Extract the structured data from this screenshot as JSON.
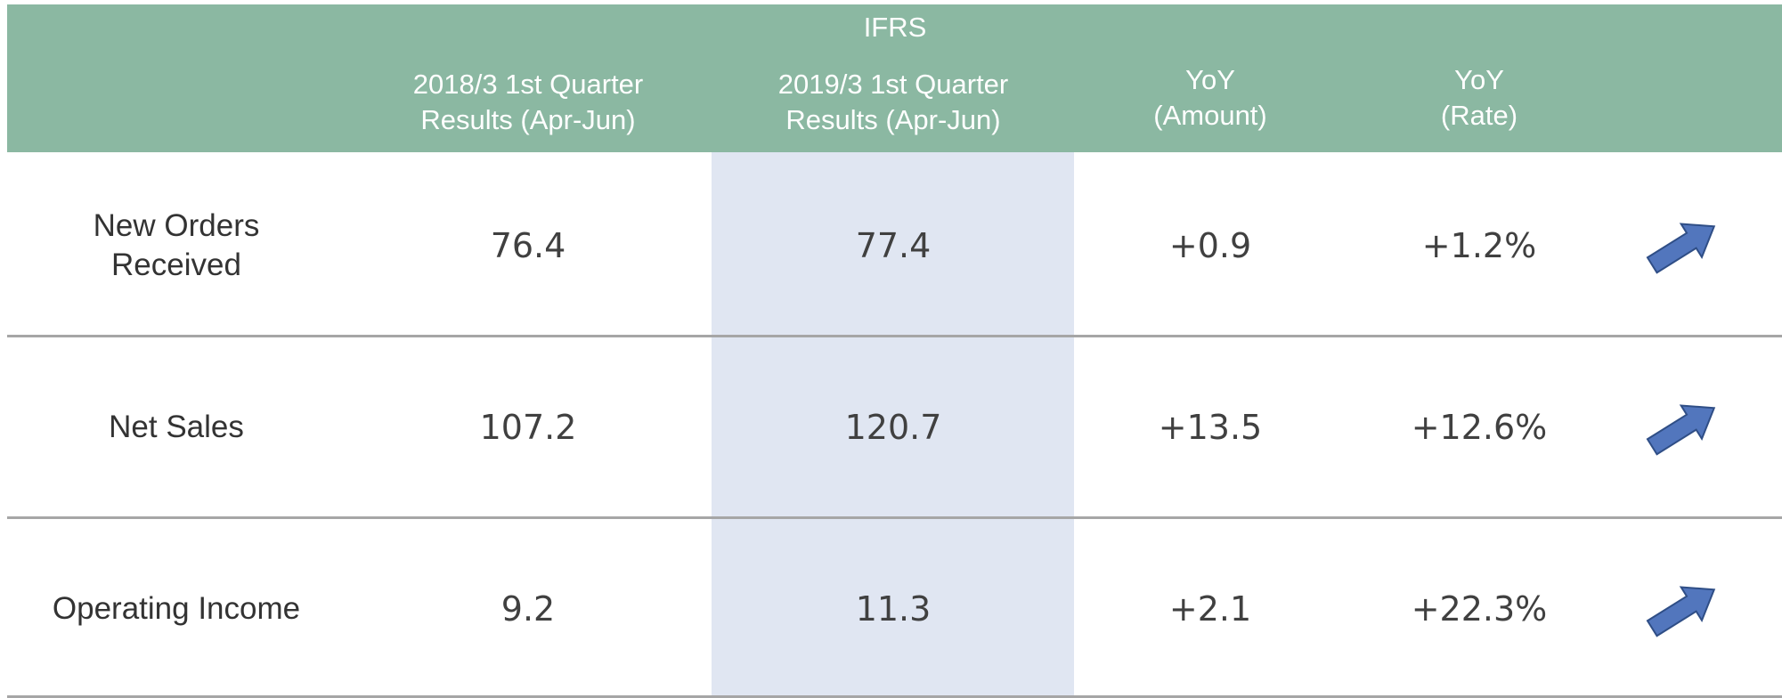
{
  "header": {
    "title": "IFRS",
    "columns": [
      [
        "2018/3 1st Quarter",
        "Results  (Apr-Jun)"
      ],
      [
        "2019/3 1st Quarter",
        "Results  (Apr-Jun)"
      ],
      [
        "YoY",
        "(Amount)"
      ],
      [
        "YoY",
        "(Rate)"
      ]
    ]
  },
  "table": {
    "rows": [
      {
        "label": [
          "New Orders",
          "Received"
        ],
        "cells": [
          "76.4",
          "77.4",
          "+0.9",
          "+1.2%"
        ]
      },
      {
        "label": [
          "Net Sales"
        ],
        "cells": [
          "107.2",
          "120.7",
          "+13.5",
          "+12.6%"
        ]
      },
      {
        "label": [
          "Operating Income"
        ],
        "cells": [
          "9.2",
          "11.3",
          "+2.1",
          "+22.3%"
        ]
      }
    ]
  }
}
